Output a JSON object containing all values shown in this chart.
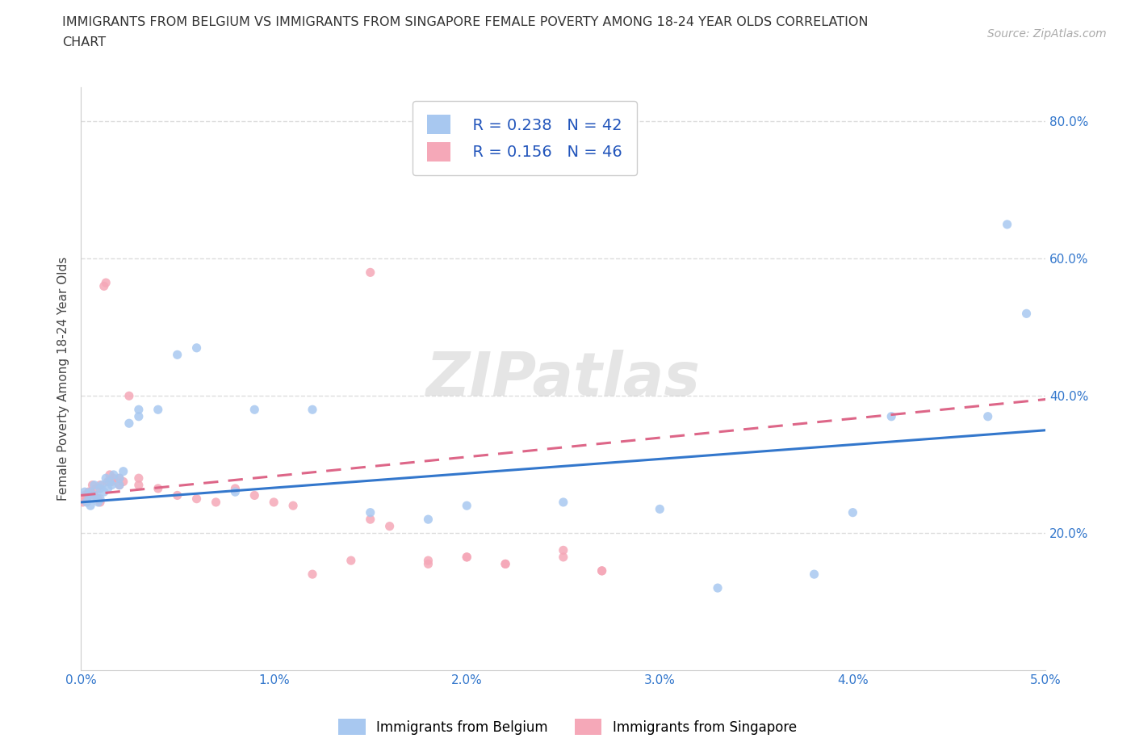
{
  "title_line1": "IMMIGRANTS FROM BELGIUM VS IMMIGRANTS FROM SINGAPORE FEMALE POVERTY AMONG 18-24 YEAR OLDS CORRELATION",
  "title_line2": "CHART",
  "source_text": "Source: ZipAtlas.com",
  "ylabel": "Female Poverty Among 18-24 Year Olds",
  "xlim": [
    0.0,
    0.05
  ],
  "ylim": [
    0.0,
    0.85
  ],
  "xtick_labels": [
    "0.0%",
    "1.0%",
    "2.0%",
    "3.0%",
    "4.0%",
    "5.0%"
  ],
  "xtick_vals": [
    0.0,
    0.01,
    0.02,
    0.03,
    0.04,
    0.05
  ],
  "ytick_labels": [
    "20.0%",
    "40.0%",
    "60.0%",
    "80.0%"
  ],
  "ytick_vals": [
    0.2,
    0.4,
    0.6,
    0.8
  ],
  "grid_color": "#dddddd",
  "background_color": "#ffffff",
  "watermark": "ZIPatlas",
  "legend_R1": "R = 0.238",
  "legend_N1": "N = 42",
  "legend_R2": "R = 0.156",
  "legend_N2": "N = 46",
  "color_belgium": "#a8c8f0",
  "color_singapore": "#f5a8b8",
  "line_color_belgium": "#3377cc",
  "line_color_singapore": "#dd6688",
  "label_belgium": "Immigrants from Belgium",
  "label_singapore": "Immigrants from Singapore",
  "belgium_x": [
    0.0002,
    0.0003,
    0.0004,
    0.0005,
    0.0005,
    0.0006,
    0.0007,
    0.0008,
    0.0009,
    0.001,
    0.001,
    0.0011,
    0.0012,
    0.0013,
    0.0014,
    0.0015,
    0.0016,
    0.0017,
    0.002,
    0.002,
    0.0022,
    0.0025,
    0.003,
    0.003,
    0.004,
    0.005,
    0.006,
    0.008,
    0.009,
    0.012,
    0.015,
    0.018,
    0.02,
    0.025,
    0.03,
    0.033,
    0.038,
    0.04,
    0.042,
    0.047,
    0.048,
    0.049
  ],
  "belgium_y": [
    0.26,
    0.245,
    0.255,
    0.24,
    0.26,
    0.25,
    0.27,
    0.255,
    0.245,
    0.25,
    0.265,
    0.27,
    0.26,
    0.28,
    0.265,
    0.275,
    0.27,
    0.285,
    0.27,
    0.28,
    0.29,
    0.36,
    0.37,
    0.38,
    0.38,
    0.46,
    0.47,
    0.26,
    0.38,
    0.38,
    0.23,
    0.22,
    0.24,
    0.245,
    0.235,
    0.12,
    0.14,
    0.23,
    0.37,
    0.37,
    0.65,
    0.52
  ],
  "singapore_x": [
    0.0001,
    0.0002,
    0.0003,
    0.0004,
    0.0005,
    0.0006,
    0.0007,
    0.0008,
    0.0009,
    0.001,
    0.001,
    0.0012,
    0.0013,
    0.0014,
    0.0015,
    0.0016,
    0.0017,
    0.002,
    0.002,
    0.0022,
    0.0025,
    0.003,
    0.003,
    0.004,
    0.005,
    0.006,
    0.007,
    0.008,
    0.009,
    0.01,
    0.011,
    0.012,
    0.014,
    0.015,
    0.016,
    0.018,
    0.02,
    0.022,
    0.025,
    0.027,
    0.015,
    0.018,
    0.02,
    0.022,
    0.025,
    0.027
  ],
  "singapore_y": [
    0.245,
    0.255,
    0.25,
    0.26,
    0.26,
    0.27,
    0.255,
    0.265,
    0.25,
    0.245,
    0.27,
    0.56,
    0.565,
    0.275,
    0.285,
    0.275,
    0.28,
    0.27,
    0.28,
    0.275,
    0.4,
    0.27,
    0.28,
    0.265,
    0.255,
    0.25,
    0.245,
    0.265,
    0.255,
    0.245,
    0.24,
    0.14,
    0.16,
    0.22,
    0.21,
    0.155,
    0.165,
    0.155,
    0.175,
    0.145,
    0.58,
    0.16,
    0.165,
    0.155,
    0.165,
    0.145
  ]
}
